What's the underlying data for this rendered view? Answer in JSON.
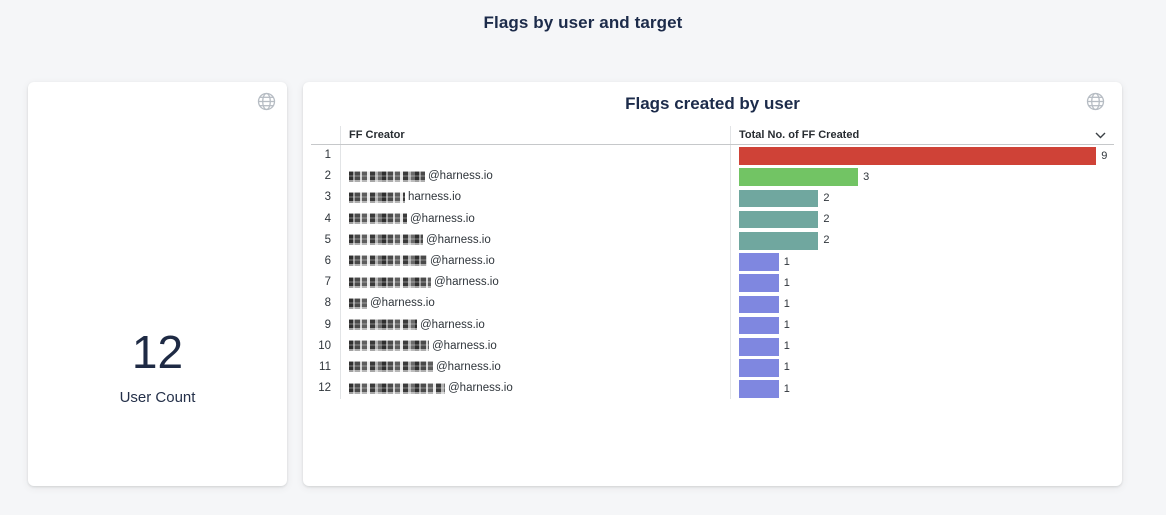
{
  "page": {
    "title": "Flags by user and target"
  },
  "colors": {
    "bar_red": "#CF4237",
    "bar_green": "#72C464",
    "bar_teal": "#70A79F",
    "bar_purple": "#7F87E0",
    "background": "#f5f6f8",
    "title_text": "#1c2b4a"
  },
  "user_count_card": {
    "value": "12",
    "label": "User Count"
  },
  "flags_card": {
    "title": "Flags created by user",
    "columns": {
      "creator": "FF Creator",
      "total": "Total No. of FF Created"
    },
    "rows": [
      {
        "rank": "1",
        "creator": "",
        "redact_width": 0,
        "value": 9,
        "color": "#CF4237"
      },
      {
        "rank": "2",
        "creator": "@harness.io",
        "redact_width": 76,
        "value": 3,
        "color": "#72C464"
      },
      {
        "rank": "3",
        "creator": "harness.io",
        "redact_width": 56,
        "value": 2,
        "color": "#70A79F"
      },
      {
        "rank": "4",
        "creator": "@harness.io",
        "redact_width": 58,
        "value": 2,
        "color": "#70A79F"
      },
      {
        "rank": "5",
        "creator": "@harness.io",
        "redact_width": 74,
        "value": 2,
        "color": "#70A79F"
      },
      {
        "rank": "6",
        "creator": "@harness.io",
        "redact_width": 78,
        "value": 1,
        "color": "#7F87E0"
      },
      {
        "rank": "7",
        "creator": "@harness.io",
        "redact_width": 82,
        "value": 1,
        "color": "#7F87E0"
      },
      {
        "rank": "8",
        "creator": "@harness.io",
        "redact_width": 18,
        "value": 1,
        "color": "#7F87E0"
      },
      {
        "rank": "9",
        "creator": "@harness.io",
        "redact_width": 68,
        "value": 1,
        "color": "#7F87E0"
      },
      {
        "rank": "10",
        "creator": "@harness.io",
        "redact_width": 80,
        "value": 1,
        "color": "#7F87E0"
      },
      {
        "rank": "11",
        "creator": "@harness.io",
        "redact_width": 84,
        "value": 1,
        "color": "#7F87E0"
      },
      {
        "rank": "12",
        "creator": "@harness.io",
        "redact_width": 96,
        "value": 1,
        "color": "#7F87E0"
      }
    ]
  },
  "chart_data": [
    {
      "type": "table",
      "title": "User Count",
      "value": 12,
      "note": "single value KPI tile"
    },
    {
      "type": "bar",
      "orientation": "horizontal",
      "title": "Flags created by user",
      "xlabel": "Total No. of FF Created",
      "ylabel": "FF Creator",
      "categories": [
        "[redacted]",
        "[redacted]@harness.io",
        "[redacted]harness.io",
        "[redacted]@harness.io",
        "[redacted]@harness.io",
        "[redacted]@harness.io",
        "[redacted]@harness.io",
        "[redacted]@harness.io",
        "[redacted]@harness.io",
        "[redacted]@harness.io",
        "[redacted]@harness.io",
        "[redacted]@harness.io"
      ],
      "values": [
        9,
        3,
        2,
        2,
        2,
        1,
        1,
        1,
        1,
        1,
        1,
        1
      ],
      "xlim": [
        0,
        9
      ],
      "grid": false,
      "legend": "none"
    }
  ]
}
